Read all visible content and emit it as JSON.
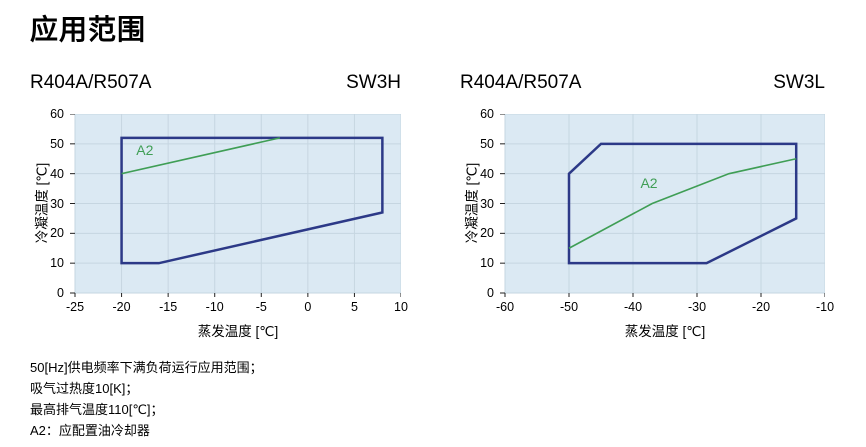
{
  "title": "应用范围",
  "notes": [
    "50[Hz]供电频率下满负荷运行应用范围；",
    "吸气过热度10[K]；",
    "最高排气温度110[℃]；",
    "A2：应配置油冷却器"
  ],
  "colors": {
    "plot_bg": "#dbe9f3",
    "grid": "#c6d6e1",
    "envelope": "#2c3987",
    "a2": "#3f9e55",
    "tick": "#222222"
  },
  "chart_data": [
    {
      "type": "area",
      "title_left": "R404A/R507A",
      "title_right": "SW3H",
      "xlabel": "蒸发温度 [℃]",
      "ylabel": "冷凝温度 [℃]",
      "xlim": [
        -25,
        10
      ],
      "ylim": [
        0,
        60
      ],
      "xticks": [
        -25,
        -20,
        -15,
        -10,
        -5,
        0,
        5,
        10
      ],
      "yticks": [
        0,
        10,
        20,
        30,
        40,
        50,
        60
      ],
      "grid": true,
      "envelope": [
        [
          -20,
          52
        ],
        [
          8,
          52
        ],
        [
          8,
          27
        ],
        [
          -16,
          10
        ],
        [
          -20,
          10
        ]
      ],
      "a2_line": [
        [
          -20,
          40
        ],
        [
          -3,
          52
        ]
      ],
      "a2_label": {
        "text": "A2",
        "x": -17.5,
        "y": 47.5
      }
    },
    {
      "type": "area",
      "title_left": "R404A/R507A",
      "title_right": "SW3L",
      "xlabel": "蒸发温度 [℃]",
      "ylabel": "冷凝温度 [℃]",
      "xlim": [
        -60,
        -10
      ],
      "ylim": [
        0,
        60
      ],
      "xticks": [
        -60,
        -50,
        -40,
        -30,
        -20,
        -10
      ],
      "yticks": [
        0,
        10,
        20,
        30,
        40,
        50,
        60
      ],
      "grid": true,
      "envelope": [
        [
          -50,
          40
        ],
        [
          -45,
          50
        ],
        [
          -14.5,
          50
        ],
        [
          -14.5,
          25
        ],
        [
          -28.5,
          10
        ],
        [
          -50,
          10
        ]
      ],
      "a2_line": [
        [
          -50,
          15
        ],
        [
          -37,
          30
        ],
        [
          -25,
          40
        ],
        [
          -14.5,
          45
        ]
      ],
      "a2_label": {
        "text": "A2",
        "x": -37.5,
        "y": 36.5
      }
    }
  ]
}
